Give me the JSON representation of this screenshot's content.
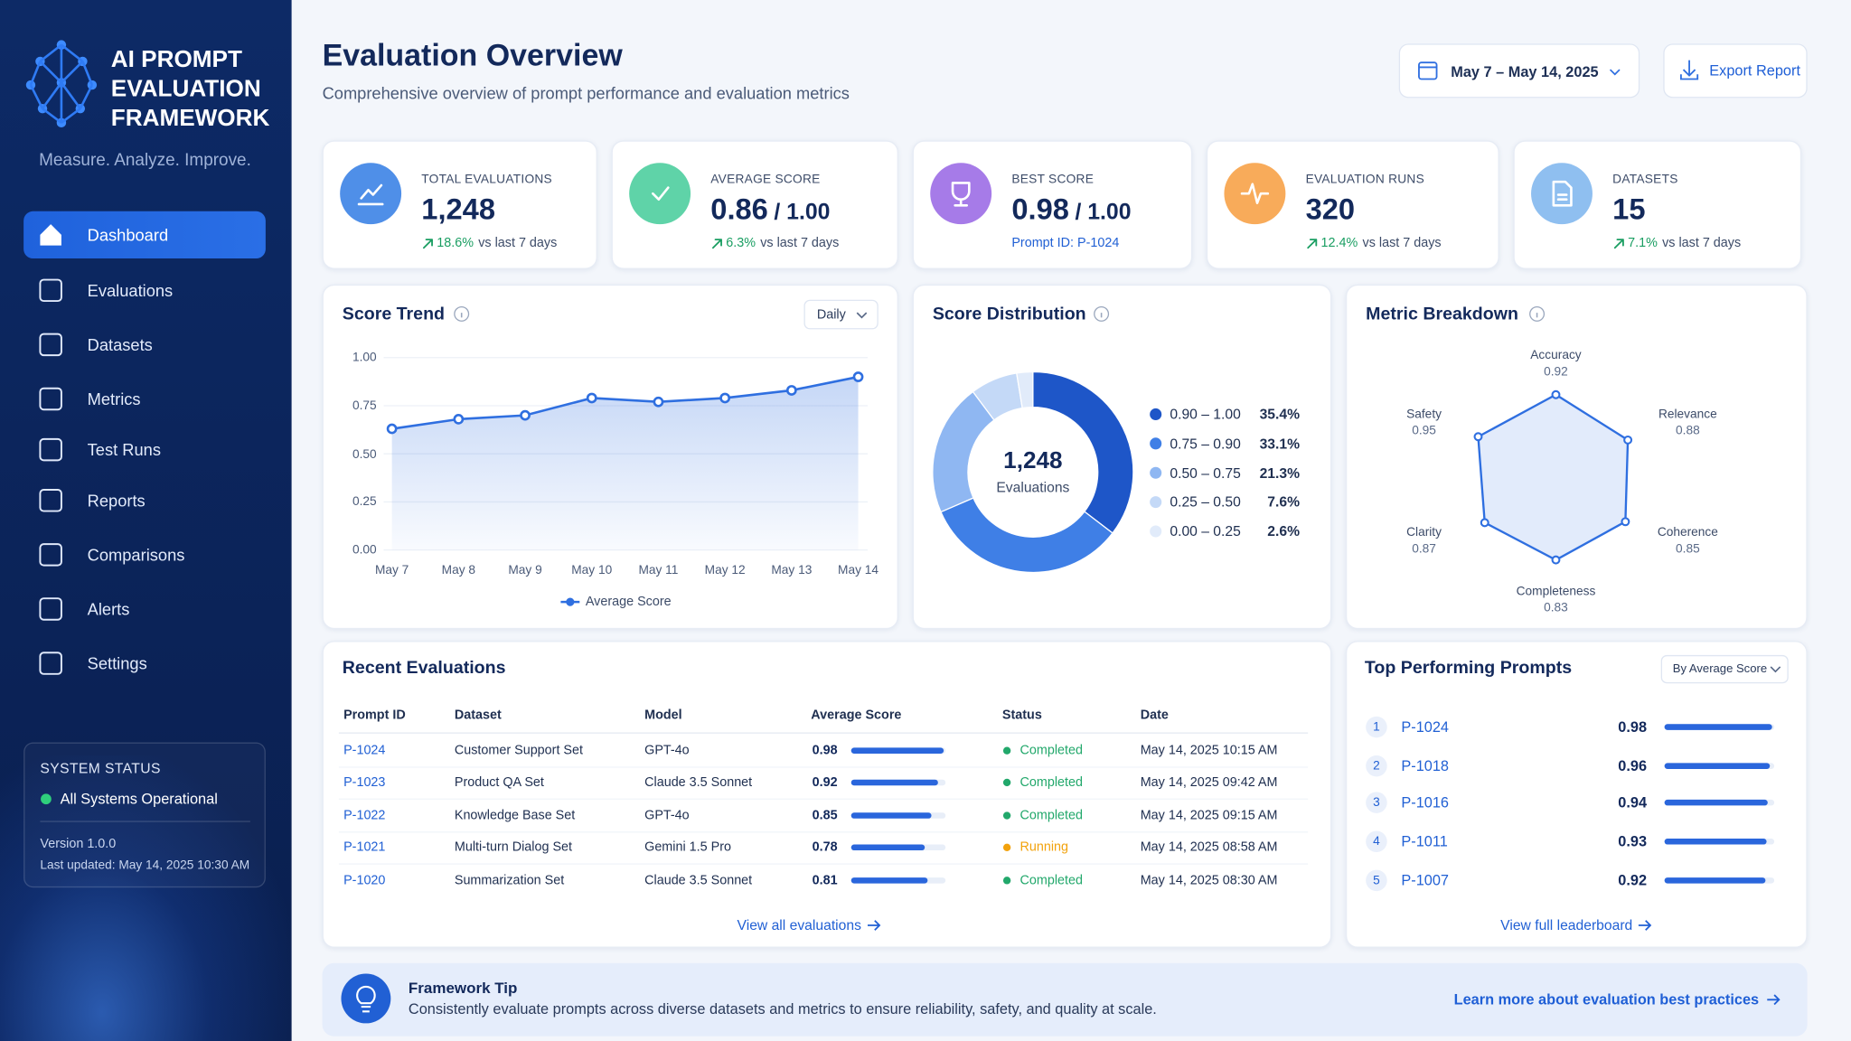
{
  "sidebar": {
    "title": "AI PROMPT EVALUATION FRAMEWORK",
    "tagline": "Measure. Analyze. Improve.",
    "nav": [
      "Dashboard",
      "Evaluations",
      "Datasets",
      "Metrics",
      "Test Runs",
      "Reports",
      "Comparisons",
      "Alerts",
      "Settings"
    ],
    "active_nav": "Dashboard",
    "status": {
      "title": "SYSTEM STATUS",
      "state": "All Systems Operational",
      "version": "Version 1.0.0",
      "updated": "Last updated: May 14, 2025 10:30 AM"
    }
  },
  "header": {
    "title": "Evaluation Overview",
    "subtitle": "Comprehensive overview of prompt performance and evaluation metrics",
    "date_range": "May 7 – May 14, 2025",
    "export": "Export Report"
  },
  "kpis": [
    {
      "label": "TOTAL EVALUATIONS",
      "value": "1,248",
      "change": "18.6%",
      "period": "vs last 7 days",
      "color": "#4f8fe8"
    },
    {
      "label": "AVERAGE SCORE",
      "value": "0.86",
      "suffix": "/ 1.00",
      "change": "6.3%",
      "period": "vs last 7 days",
      "color": "#5fd3a8"
    },
    {
      "label": "BEST SCORE",
      "value": "0.98",
      "suffix": "/ 1.00",
      "note": "Prompt ID: P-1024",
      "color": "#a67be8"
    },
    {
      "label": "EVALUATION RUNS",
      "value": "320",
      "change": "12.4%",
      "period": "vs last 7 days",
      "color": "#f8ab5a"
    },
    {
      "label": "DATASETS",
      "value": "15",
      "change": "7.1%",
      "period": "vs last 7 days",
      "color": "#8fbff0"
    }
  ],
  "chart_data": [
    {
      "type": "line",
      "title": "Score Trend",
      "control": "Daily",
      "x": [
        "May 7",
        "May 8",
        "May 9",
        "May 10",
        "May 11",
        "May 12",
        "May 13",
        "May 14"
      ],
      "series": [
        {
          "name": "Average Score",
          "color": "#2f6fe0",
          "values": [
            0.63,
            0.68,
            0.7,
            0.79,
            0.77,
            0.79,
            0.83,
            0.9
          ]
        }
      ],
      "ylim": [
        0,
        1
      ],
      "yticks": [
        {
          "value": 0,
          "label": "0.00"
        },
        {
          "value": 0.25,
          "label": "0.25"
        },
        {
          "value": 0.5,
          "label": "0.50"
        },
        {
          "value": 0.75,
          "label": "0.75"
        },
        {
          "value": 1,
          "label": "1.00"
        }
      ],
      "area": true,
      "legend": "bottom"
    },
    {
      "type": "donut",
      "title": "Score Distribution",
      "center_value": "1,248",
      "center_label": "Evaluations",
      "categories": [
        "0.90 – 1.00",
        "0.75 – 0.90",
        "0.50 – 0.75",
        "0.25 – 0.50",
        "0.00 – 0.25"
      ],
      "values": [
        35.4,
        33.1,
        21.3,
        7.6,
        2.6
      ],
      "value_labels": [
        "35.4%",
        "33.1%",
        "21.3%",
        "7.6%",
        "2.6%"
      ],
      "colors": [
        "#1e56c8",
        "#3f7fe6",
        "#8fb7f2",
        "#c4d9f7",
        "#e1ebfa"
      ]
    },
    {
      "type": "radar",
      "title": "Metric Breakdown",
      "categories": [
        "Accuracy",
        "Relevance",
        "Coherence",
        "Completeness",
        "Clarity",
        "Safety"
      ],
      "values": [
        0.92,
        0.88,
        0.85,
        0.83,
        0.87,
        0.95
      ],
      "rlim": [
        0,
        1
      ],
      "color": "#2f6fe0"
    }
  ],
  "recent": {
    "title": "Recent Evaluations",
    "columns": [
      "Prompt ID",
      "Dataset",
      "Model",
      "Average Score",
      "Status",
      "Date"
    ],
    "rows": [
      [
        "P-1024",
        "Customer Support Set",
        "GPT-4o",
        0.98,
        "Completed",
        "May 14, 2025 10:15 AM"
      ],
      [
        "P-1023",
        "Product QA Set",
        "Claude 3.5 Sonnet",
        0.92,
        "Completed",
        "May 14, 2025 09:42 AM"
      ],
      [
        "P-1022",
        "Knowledge Base Set",
        "GPT-4o",
        0.85,
        "Completed",
        "May 14, 2025 09:15 AM"
      ],
      [
        "P-1021",
        "Multi-turn Dialog Set",
        "Gemini 1.5 Pro",
        0.78,
        "Running",
        "May 14, 2025 08:58 AM"
      ],
      [
        "P-1020",
        "Summarization Set",
        "Claude 3.5 Sonnet",
        0.81,
        "Completed",
        "May 14, 2025 08:30 AM"
      ]
    ],
    "status_colors": [
      "#22a86b",
      "#22a86b",
      "#22a86b",
      "#f2a20c",
      "#22a86b"
    ],
    "link": "View all evaluations"
  },
  "top": {
    "title": "Top Performing Prompts",
    "control": "By Average Score",
    "items": [
      {
        "rank": 1,
        "id": "P-1024",
        "score": 0.98
      },
      {
        "rank": 2,
        "id": "P-1018",
        "score": 0.96
      },
      {
        "rank": 3,
        "id": "P-1016",
        "score": 0.94
      },
      {
        "rank": 4,
        "id": "P-1011",
        "score": 0.93
      },
      {
        "rank": 5,
        "id": "P-1007",
        "score": 0.92
      }
    ],
    "link": "View full leaderboard"
  },
  "tip": {
    "title": "Framework Tip",
    "text": "Consistently evaluate prompts across diverse datasets and metrics to ensure reliability, safety, and quality at scale.",
    "link": "Learn more about evaluation best practices"
  }
}
